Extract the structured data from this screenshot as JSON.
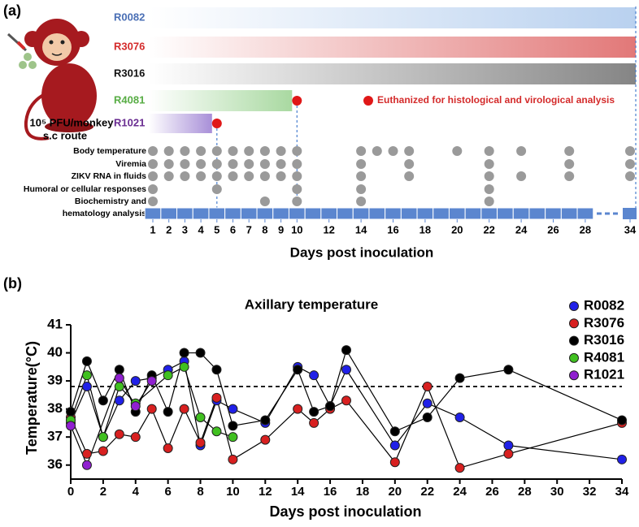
{
  "panel_a": {
    "label": "(a)",
    "dose": "10⁵ PFU/monkey",
    "route": "s.c route",
    "animals": [
      {
        "name": "R0082",
        "color": "#4a6fb5",
        "bar_color": "#b9d1ef",
        "end_day": 34,
        "euthanized": false
      },
      {
        "name": "R3076",
        "color": "#d42b2b",
        "bar_color": "#e27878",
        "end_day": 34,
        "euthanized": false
      },
      {
        "name": "R3016",
        "color": "#111111",
        "bar_color": "#858585",
        "end_day": 34,
        "euthanized": false
      },
      {
        "name": "R4081",
        "color": "#58ad45",
        "bar_color": "#a9d9a1",
        "end_day": 10,
        "euthanized": true
      },
      {
        "name": "R1021",
        "color": "#6a2d91",
        "bar_color": "#a88fd8",
        "end_day": 5,
        "euthanized": true
      }
    ],
    "euthanized_note": "Euthanized for histological and virological analysis",
    "rows": [
      {
        "label": [
          "Body temperature"
        ],
        "days": [
          1,
          2,
          3,
          4,
          5,
          6,
          7,
          8,
          9,
          10,
          14,
          15,
          16,
          17,
          20,
          22,
          24,
          27,
          34
        ]
      },
      {
        "label": [
          "Viremia"
        ],
        "days": [
          1,
          2,
          3,
          4,
          5,
          6,
          7,
          8,
          9,
          10,
          14,
          17,
          22,
          27,
          34
        ]
      },
      {
        "label": [
          "ZIKV RNA in fluids"
        ],
        "days": [
          1,
          2,
          3,
          4,
          5,
          6,
          7,
          8,
          9,
          10,
          14,
          17,
          22,
          24,
          27,
          34
        ]
      },
      {
        "label": [
          "Humoral or cellular responses"
        ],
        "days": [
          1,
          5,
          10,
          14,
          22
        ]
      },
      {
        "label": [
          "Biochemistry and",
          "hematology analysis"
        ],
        "days": [
          1,
          8,
          10,
          14,
          22
        ]
      }
    ],
    "xticks": [
      1,
      2,
      3,
      4,
      5,
      6,
      7,
      8,
      9,
      10,
      12,
      14,
      16,
      18,
      20,
      22,
      24,
      26,
      28,
      34
    ],
    "xlabel": "Days post inoculation"
  },
  "panel_b_label": "(b)",
  "chart_data": {
    "type": "line",
    "title": "Axillary temperature",
    "xlabel": "Days post inoculation",
    "ylabel": "Temperature(°C)",
    "xlim": [
      0,
      34
    ],
    "xticks": [
      0,
      2,
      4,
      6,
      8,
      10,
      12,
      14,
      16,
      18,
      20,
      22,
      24,
      26,
      28,
      30,
      32,
      34
    ],
    "ylim": [
      35.5,
      41
    ],
    "yticks": [
      36,
      37,
      38,
      39,
      40,
      41
    ],
    "threshold": 38.8,
    "legend": "upper right",
    "series": [
      {
        "name": "R0082",
        "color": "#2020e8",
        "x": [
          0,
          1,
          2,
          3,
          4,
          5,
          6,
          7,
          8,
          9,
          10,
          12,
          14,
          15,
          16,
          17,
          20,
          22,
          24,
          27,
          34
        ],
        "values": [
          37.5,
          38.8,
          37.0,
          38.3,
          39.0,
          39.1,
          39.4,
          39.7,
          36.7,
          38.3,
          38.0,
          37.5,
          39.5,
          39.2,
          38.1,
          39.4,
          36.7,
          38.2,
          37.7,
          36.7,
          36.2
        ]
      },
      {
        "name": "R3076",
        "color": "#d82020",
        "x": [
          0,
          1,
          2,
          3,
          4,
          5,
          6,
          7,
          8,
          9,
          10,
          12,
          14,
          15,
          16,
          17,
          20,
          22,
          24,
          27,
          34
        ],
        "values": [
          37.7,
          36.4,
          36.5,
          37.1,
          37.0,
          38.0,
          36.6,
          38.0,
          36.8,
          38.4,
          36.2,
          36.9,
          38.0,
          37.5,
          38.0,
          38.3,
          36.1,
          38.8,
          35.9,
          36.4,
          37.5
        ]
      },
      {
        "name": "R3016",
        "color": "#000000",
        "x": [
          0,
          1,
          2,
          3,
          4,
          5,
          6,
          7,
          8,
          9,
          10,
          12,
          14,
          15,
          16,
          17,
          20,
          22,
          24,
          27,
          34
        ],
        "values": [
          37.9,
          39.7,
          38.3,
          39.4,
          37.9,
          39.2,
          37.9,
          40.0,
          40.0,
          39.4,
          37.4,
          37.6,
          39.4,
          37.9,
          38.1,
          40.1,
          37.2,
          37.7,
          39.1,
          39.4,
          37.6
        ]
      },
      {
        "name": "R4081",
        "color": "#40c020",
        "x": [
          0,
          1,
          2,
          3,
          4,
          6,
          7,
          8,
          9,
          10
        ],
        "values": [
          37.6,
          39.2,
          37.0,
          38.8,
          38.2,
          39.2,
          39.5,
          37.7,
          37.2,
          37.0
        ]
      },
      {
        "name": "R1021",
        "color": "#9020d0",
        "x": [
          0,
          1,
          3,
          4,
          5
        ],
        "values": [
          37.4,
          36.0,
          39.1,
          38.1,
          39.0
        ]
      }
    ]
  }
}
